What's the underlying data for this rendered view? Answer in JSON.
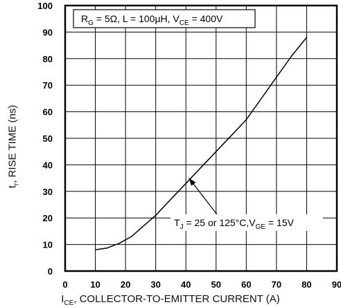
{
  "chart_data": {
    "type": "line",
    "title": "",
    "xlabel": {
      "main": "I",
      "sub": "CE",
      "rest": ", COLLECTOR-TO-EMITTER CURRENT (A)"
    },
    "ylabel": {
      "main": "t",
      "sub": "r",
      "rest": ", RISE TIME (ns)"
    },
    "xlim": [
      0,
      90
    ],
    "ylim": [
      0,
      100
    ],
    "xticks": [
      0,
      10,
      20,
      30,
      40,
      50,
      60,
      70,
      80,
      90
    ],
    "yticks": [
      0,
      10,
      20,
      30,
      40,
      50,
      60,
      70,
      80,
      90,
      100
    ],
    "grid": true,
    "conditions": {
      "parts": [
        {
          "t": "R",
          "sub": false
        },
        {
          "t": "G",
          "sub": true
        },
        {
          "t": " = 5Ω, L = 100µH, V",
          "sub": false
        },
        {
          "t": "CE",
          "sub": true
        },
        {
          "t": " = 400V",
          "sub": false
        }
      ]
    },
    "annotation": {
      "parts": [
        {
          "t": "T",
          "sub": false
        },
        {
          "t": "J",
          "sub": true
        },
        {
          "t": " = 25 or 125°C,V",
          "sub": false
        },
        {
          "t": "GE",
          "sub": true
        },
        {
          "t": " = 15V",
          "sub": false
        }
      ],
      "arrow_to": [
        41,
        35
      ]
    },
    "series": [
      {
        "x": [
          10,
          14,
          18,
          22,
          26,
          30,
          35,
          40,
          45,
          50,
          55,
          60,
          65,
          70,
          75,
          80
        ],
        "y": [
          8,
          8.7,
          10.5,
          13,
          17,
          21,
          27,
          33,
          39,
          45,
          51,
          57,
          65,
          73,
          81,
          88
        ]
      }
    ]
  }
}
